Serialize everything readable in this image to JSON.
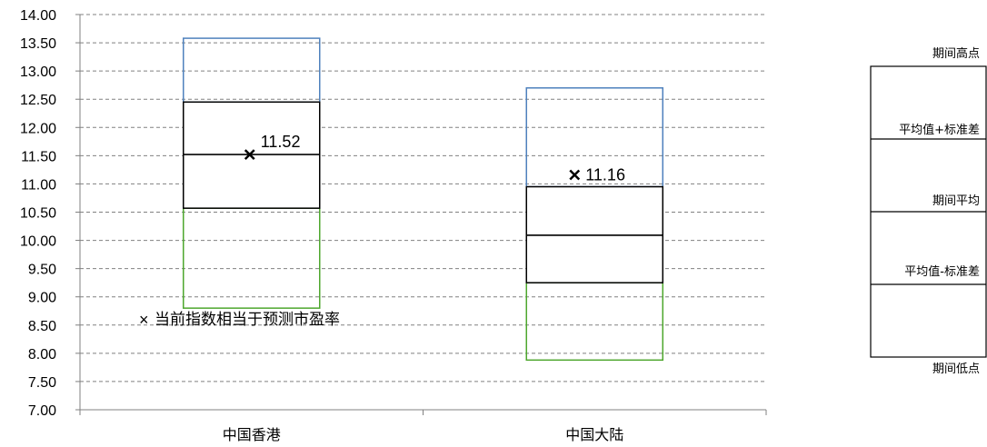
{
  "chart_data": {
    "type": "box",
    "categories": [
      "中国香港",
      "中国大陆"
    ],
    "yticks": [
      "14.00",
      "13.50",
      "13.00",
      "12.50",
      "12.00",
      "11.50",
      "11.00",
      "10.50",
      "10.00",
      "9.50",
      "9.00",
      "8.50",
      "8.00",
      "7.50",
      "7.00"
    ],
    "ylim": [
      7.0,
      14.0
    ],
    "grid": true,
    "series": [
      {
        "high": 13.58,
        "mean_plus_sd": 12.45,
        "mean": 11.52,
        "mean_minus_sd": 10.57,
        "low": 8.8,
        "current": 11.52,
        "current_label": "11.52"
      },
      {
        "high": 12.7,
        "mean_plus_sd": 10.95,
        "mean": 10.09,
        "mean_minus_sd": 9.25,
        "low": 7.88,
        "current": 11.16,
        "current_label": "11.16"
      }
    ],
    "annotation": "当前指数相当于预测市盈率",
    "legend": {
      "high": "期间高点",
      "mean_plus_sd": "平均值+标准差",
      "mean": "期间平均",
      "mean_minus_sd": "平均值-标准差",
      "low": "期间低点"
    },
    "colors": {
      "upper": "#4F81BD",
      "middle": "#000000",
      "lower": "#4EA72E",
      "grid": "#808080"
    }
  }
}
